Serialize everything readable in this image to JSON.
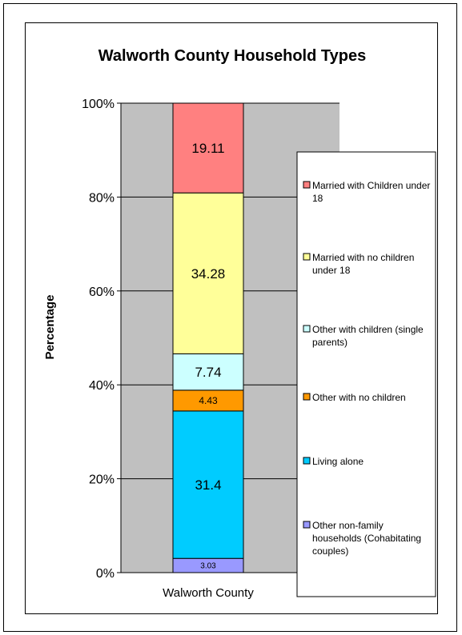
{
  "chart_data": {
    "type": "bar",
    "stacked": true,
    "percent_stacked": true,
    "title": "Walworth County Household Types",
    "xlabel": "",
    "ylabel": "Percentage",
    "categories": [
      "Walworth County"
    ],
    "ylim": [
      0,
      100
    ],
    "yticks": [
      "0%",
      "20%",
      "40%",
      "60%",
      "80%",
      "100%"
    ],
    "grid": true,
    "legend_position": "right",
    "plot_background": "#c0c0c0",
    "series": [
      {
        "name": "Married with Children under 18",
        "legend_lines": [
          "Married with Children under",
          "18"
        ],
        "values": [
          19.11
        ],
        "label": "19.11",
        "color": "#ff8080"
      },
      {
        "name": "Married with no children under 18",
        "legend_lines": [
          "Married with no children",
          "under 18"
        ],
        "values": [
          34.28
        ],
        "label": "34.28",
        "color": "#ffff99"
      },
      {
        "name": "Other with children (single parents)",
        "legend_lines": [
          "Other with children (single",
          "parents)"
        ],
        "values": [
          7.74
        ],
        "label": "7.74",
        "color": "#ccffff"
      },
      {
        "name": "Other with no children",
        "legend_lines": [
          "Other with no children"
        ],
        "values": [
          4.43
        ],
        "label": "4.43",
        "color": "#ff9900"
      },
      {
        "name": "Living alone",
        "legend_lines": [
          "Living alone"
        ],
        "values": [
          31.4
        ],
        "label": "31.4",
        "color": "#00ccff"
      },
      {
        "name": "Other non-family households (Cohabitating couples)",
        "legend_lines": [
          "Other non-family",
          "households (Cohabitating",
          "couples)"
        ],
        "values": [
          3.03
        ],
        "label": "3.03",
        "color": "#9999ff"
      }
    ]
  }
}
